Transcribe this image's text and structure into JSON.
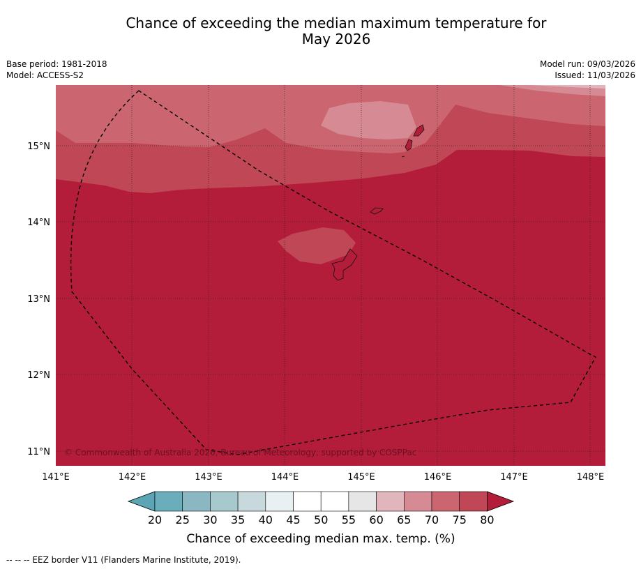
{
  "title_line1": "Chance of exceeding the median maximum temperature for",
  "title_line2": "May 2026",
  "info_left": {
    "base_period": "Base period: 1981-2018",
    "model": "Model: ACCESS-S2"
  },
  "info_right": {
    "model_run": "Model run: 09/03/2026",
    "issued": "Issued: 11/03/2026"
  },
  "map": {
    "lon_labels": [
      "141°E",
      "142°E",
      "143°E",
      "144°E",
      "145°E",
      "146°E",
      "147°E",
      "148°E"
    ],
    "lat_labels": [
      "15°N",
      "14°N",
      "13°N",
      "12°N",
      "11°N"
    ],
    "copyright": "© Commonwealth of Australia 2026, Bureau of Meteorology, supported by COSPPac",
    "background_color": "#b31d3a"
  },
  "colorbar": {
    "ticks": [
      "20",
      "25",
      "30",
      "35",
      "40",
      "45",
      "50",
      "55",
      "60",
      "65",
      "70",
      "75",
      "80"
    ],
    "colors": [
      "#5ba5b5",
      "#6aaebb",
      "#8bb7c2",
      "#a7c8cc",
      "#c7d9dc",
      "#e9f0f1",
      "#ffffff",
      "#ffffff",
      "#e6e6e6",
      "#e0b5bb",
      "#d68b94",
      "#cb6670",
      "#c04755",
      "#b31d3a"
    ],
    "label": "Chance of exceeding median max. temp. (%)"
  },
  "footer": "--  --  -- EEZ border V11 (Flanders Marine Institute, 2019)."
}
